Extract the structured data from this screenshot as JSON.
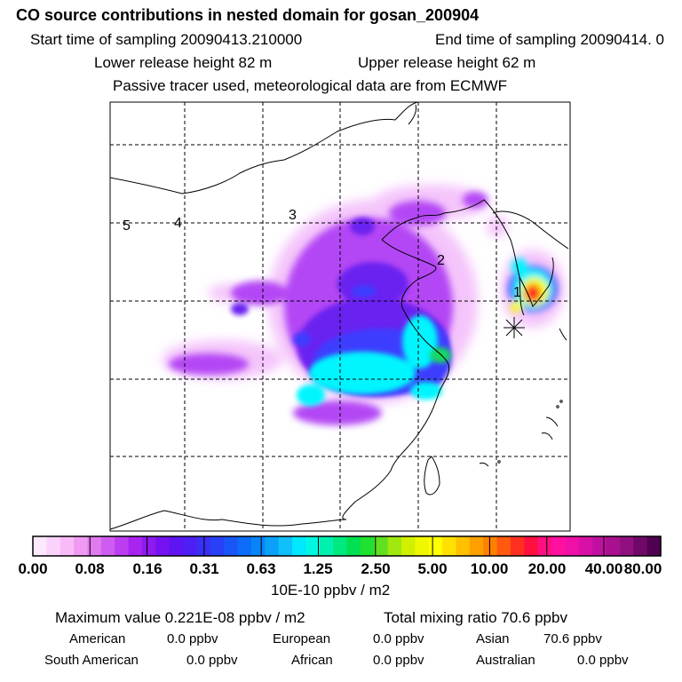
{
  "header": {
    "title": "CO  source contributions in nested domain for gosan_200904",
    "start_time": "Start time of sampling 20090413.210000",
    "end_time": "End time of sampling 20090414.     0",
    "lower_release": "Lower release height   82 m",
    "upper_release": "Upper release height   62 m",
    "tracer_note": "Passive tracer used, meteorological data are from ECMWF"
  },
  "map": {
    "region_labels": [
      "1",
      "2",
      "3",
      "4",
      "5"
    ],
    "colors": {
      "light_violet": "#f4c4fb",
      "violet": "#b446f5",
      "purple": "#8a2be2",
      "blue": "#3c3cff",
      "cyan": "#00f5ff",
      "green": "#18d860",
      "yellow": "#f5ff00",
      "red": "#ff2020"
    }
  },
  "colorbar": {
    "colors": [
      "#fde8fd",
      "#fbd2fb",
      "#f8bbf8",
      "#f09af3",
      "#e07aef",
      "#cf5cf0",
      "#bd3ef0",
      "#a824ef",
      "#8f1af0",
      "#7611f1",
      "#5f14f2",
      "#4d1ff4",
      "#3a2ff5",
      "#2840f6",
      "#1a55f7",
      "#0d6cf8",
      "#0785f8",
      "#0aa2f9",
      "#10c0fb",
      "#00e8ff",
      "#00f8e0",
      "#00f0b0",
      "#00e880",
      "#00e050",
      "#20e030",
      "#60e020",
      "#a0e810",
      "#d0f000",
      "#f0f800",
      "#ffff00",
      "#ffe000",
      "#ffc000",
      "#ffa000",
      "#ff8000",
      "#ff5a10",
      "#ff3020",
      "#ff1040",
      "#ff1080",
      "#ff10a0",
      "#f010a8",
      "#d810a8",
      "#c010a0",
      "#a81090",
      "#901080",
      "#700868",
      "#500050"
    ],
    "ticks": [
      "0.00",
      "0.08",
      "0.16",
      "0.31",
      "0.63",
      "1.25",
      "2.50",
      "5.00",
      "10.00",
      "20.00",
      "40.00",
      "80.00"
    ],
    "unit": "10E-10 ppbv / m2"
  },
  "summary": {
    "maximum_value": "Maximum value  0.221E-08 ppbv / m2",
    "total_mixing_ratio": "Total mixing ratio       70.6 ppbv"
  },
  "sources": [
    {
      "name": "American",
      "value": "0.0 ppbv"
    },
    {
      "name": "European",
      "value": "0.0 ppbv"
    },
    {
      "name": "Asian",
      "value": "70.6 ppbv"
    },
    {
      "name": "South American",
      "value": "0.0 ppbv"
    },
    {
      "name": "African",
      "value": "0.0 ppbv"
    },
    {
      "name": "Australian",
      "value": "0.0 ppbv"
    }
  ]
}
